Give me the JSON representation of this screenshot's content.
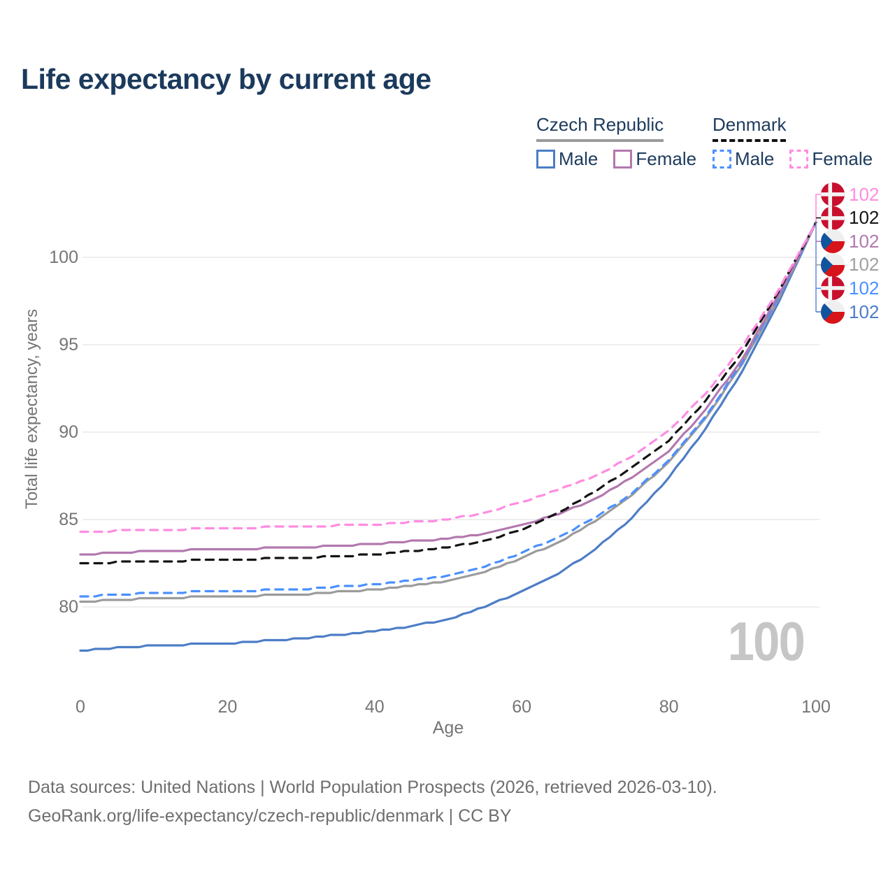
{
  "title": "Life expectancy by current age",
  "legend": {
    "groups": [
      {
        "label": "Czech Republic",
        "line_style": "solid",
        "underline_color": "#9b9b9b",
        "items": [
          {
            "label": "Male",
            "color": "#4d7dc6"
          },
          {
            "label": "Female",
            "color": "#b378ae"
          }
        ]
      },
      {
        "label": "Denmark",
        "line_style": "dashed",
        "underline_color": "#111111",
        "items": [
          {
            "label": "Male",
            "color": "#4a90ff"
          },
          {
            "label": "Female",
            "color": "#ff8ce1"
          }
        ]
      }
    ]
  },
  "watermark": "100",
  "footer": {
    "line1": "Data sources: United Nations | World Population Prospects (2026, retrieved 2026-03-10).",
    "line2": "GeoRank.org/life-expectancy/czech-republic/denmark | CC BY"
  },
  "end_labels": [
    {
      "flag": "denmark",
      "series": "Denmark Female",
      "value": "102",
      "color": "#ff8ce1"
    },
    {
      "flag": "denmark",
      "series": "Denmark Total",
      "value": "102",
      "color": "#141414"
    },
    {
      "flag": "czechia",
      "series": "Czech Republic Female",
      "value": "102",
      "color": "#b378ae"
    },
    {
      "flag": "czechia",
      "series": "Czech Republic Total",
      "value": "102",
      "color": "#a0a0a0"
    },
    {
      "flag": "denmark",
      "series": "Denmark Male",
      "value": "102",
      "color": "#4a90ff"
    },
    {
      "flag": "czechia",
      "series": "Czech Republic Male",
      "value": "102",
      "color": "#4d7dc6"
    }
  ],
  "chart_data": {
    "type": "line",
    "title": "Life expectancy by current age",
    "xlabel": "Age",
    "ylabel": "Total life expectancy, years",
    "xlim": [
      0,
      100
    ],
    "ylim": [
      77,
      103
    ],
    "xticks": [
      0,
      20,
      40,
      60,
      80,
      100
    ],
    "yticks": [
      80,
      85,
      90,
      95,
      100
    ],
    "grid": true,
    "legend_position": "top-right",
    "x": [
      0,
      10,
      20,
      30,
      40,
      45,
      50,
      55,
      60,
      65,
      70,
      75,
      80,
      85,
      90,
      95,
      100
    ],
    "series": [
      {
        "name": "Czech Republic Male",
        "country": "Czech Republic",
        "dash": false,
        "color": "#4d7dc6",
        "values": [
          77.5,
          77.8,
          77.9,
          78.2,
          78.6,
          78.9,
          79.3,
          80.0,
          80.9,
          81.9,
          83.3,
          85.1,
          87.4,
          90.2,
          93.5,
          97.5,
          102
        ]
      },
      {
        "name": "Czech Republic Total",
        "country": "Czech Republic",
        "dash": false,
        "color": "#9b9b9b",
        "values": [
          80.3,
          80.5,
          80.6,
          80.7,
          81.0,
          81.2,
          81.5,
          82.0,
          82.8,
          83.7,
          84.9,
          86.4,
          88.3,
          90.8,
          93.9,
          97.7,
          102
        ]
      },
      {
        "name": "Denmark Male",
        "country": "Denmark",
        "dash": true,
        "color": "#4a90ff",
        "values": [
          80.6,
          80.8,
          80.9,
          81.0,
          81.3,
          81.5,
          81.8,
          82.3,
          83.1,
          84.0,
          85.1,
          86.5,
          88.4,
          90.9,
          94.0,
          97.8,
          102
        ]
      },
      {
        "name": "Czech Republic Female",
        "country": "Czech Republic",
        "dash": false,
        "color": "#b378ae",
        "values": [
          83.0,
          83.2,
          83.3,
          83.4,
          83.6,
          83.75,
          83.9,
          84.2,
          84.7,
          85.3,
          86.2,
          87.4,
          88.9,
          91.3,
          94.2,
          97.9,
          102
        ]
      },
      {
        "name": "Denmark Total",
        "country": "Denmark",
        "dash": true,
        "color": "#141414",
        "values": [
          82.5,
          82.6,
          82.7,
          82.8,
          83.0,
          83.2,
          83.4,
          83.8,
          84.4,
          85.4,
          86.6,
          88.0,
          89.5,
          91.8,
          94.6,
          98.1,
          102
        ]
      },
      {
        "name": "Denmark Female",
        "country": "Denmark",
        "dash": true,
        "color": "#ff8ce1",
        "values": [
          84.3,
          84.4,
          84.5,
          84.6,
          84.7,
          84.85,
          85.0,
          85.4,
          86.0,
          86.7,
          87.5,
          88.6,
          90.1,
          92.2,
          94.9,
          98.2,
          102
        ]
      }
    ]
  }
}
